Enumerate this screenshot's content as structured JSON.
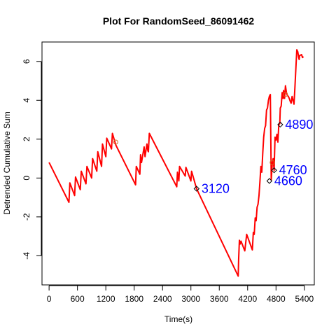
{
  "chart_data": {
    "type": "line",
    "title": "Plot For RandomSeed_86091462",
    "xlabel": "Time(s)",
    "ylabel": "Detrended Cumulative Sum",
    "xlim": [
      -150,
      5610
    ],
    "ylim": [
      -5.5,
      7.0
    ],
    "x_ticks": [
      0,
      600,
      1200,
      1800,
      2400,
      3000,
      3600,
      4200,
      4800,
      5400
    ],
    "y_ticks": [
      -4,
      -2,
      0,
      2,
      4,
      6
    ],
    "x_tick_labels": [
      "0",
      "600",
      "1200",
      "1800",
      "2400",
      "3000",
      "3600",
      "4200",
      "4800",
      "5400"
    ],
    "y_tick_labels": [
      "-4",
      "-2",
      "0",
      "2",
      "4",
      "6"
    ],
    "grid": false,
    "series": [
      {
        "color": "#ff0000",
        "x": [
          0,
          420,
          440,
          540,
          560,
          660,
          680,
          780,
          800,
          900,
          920,
          1010,
          1030,
          1110,
          1130,
          1200,
          1220,
          1320,
          1340,
          1410,
          1830,
          1845,
          1920,
          1935,
          1955,
          2010,
          2030,
          2070,
          2090,
          2100,
          2120,
          2700,
          2715,
          2745,
          2760,
          2880,
          2895,
          3000,
          3015,
          3120,
          4000,
          4010,
          4025,
          4040,
          4060,
          4140,
          4180,
          4300,
          4320,
          4340,
          4360,
          4380,
          4400,
          4420,
          4440,
          4460,
          4480,
          4500,
          4520,
          4540,
          4560,
          4580,
          4600,
          4620,
          4640,
          4660,
          4680,
          4700,
          4720,
          4740,
          4760,
          4780,
          4800,
          4820,
          4840,
          4860,
          4880,
          4890,
          4910,
          4930,
          4950,
          4960,
          4980,
          5000,
          5020,
          5040,
          5060,
          5080,
          5100,
          5120,
          5140,
          5160,
          5180,
          5200,
          5240,
          5260,
          5280,
          5290,
          5300,
          5340,
          5360,
          5380
        ],
        "y": [
          0.8,
          -1.25,
          -0.25,
          -0.9,
          0.05,
          -0.6,
          0.35,
          -0.3,
          0.6,
          0.0,
          1.0,
          0.35,
          1.35,
          0.6,
          1.75,
          1.1,
          2.05,
          1.5,
          2.3,
          1.7,
          -0.35,
          0.6,
          0.2,
          1.2,
          0.8,
          1.6,
          1.1,
          1.75,
          1.4,
          1.35,
          2.3,
          -0.45,
          0.3,
          -0.15,
          0.6,
          0.1,
          0.55,
          -0.15,
          0.35,
          -0.55,
          -5.05,
          -4.2,
          -3.2,
          -3.4,
          -3.25,
          -3.75,
          -2.9,
          -3.7,
          -2.8,
          -2.9,
          -2.05,
          -2.2,
          -1.5,
          -1.35,
          -0.9,
          -0.2,
          0.6,
          0.3,
          1.3,
          2.1,
          2.55,
          2.7,
          3.5,
          3.6,
          4.0,
          4.2,
          4.3,
          -0.1,
          0.7,
          1.0,
          0.4,
          2.1,
          1.95,
          2.25,
          1.85,
          2.75,
          2.8,
          3.6,
          3.7,
          4.4,
          4.1,
          4.5,
          4.1,
          4.75,
          4.4,
          4.25,
          4.2,
          4.1,
          3.95,
          3.85,
          4.2,
          4.0,
          3.8,
          4.65,
          6.6,
          6.5,
          6.2,
          6.1,
          6.3,
          6.35,
          6.2,
          6.25
        ]
      }
    ],
    "markers": [
      {
        "x": 1410,
        "y": 1.85,
        "color": "#d2691e",
        "label": ""
      },
      {
        "x": 3120,
        "y": -0.55,
        "color": "#000000",
        "label": "3120"
      },
      {
        "x": 4660,
        "y": -0.15,
        "color": "#000000",
        "label": "4660"
      },
      {
        "x": 4760,
        "y": 0.4,
        "color": "#000000",
        "label": "4760"
      },
      {
        "x": 4890,
        "y": 2.75,
        "color": "#000000",
        "label": "4890"
      },
      {
        "x": 4720,
        "y": 0.8,
        "color": "#d2691e",
        "label": ""
      },
      {
        "x": 5000,
        "y": 4.3,
        "color": "#d2691e",
        "label": ""
      }
    ]
  }
}
